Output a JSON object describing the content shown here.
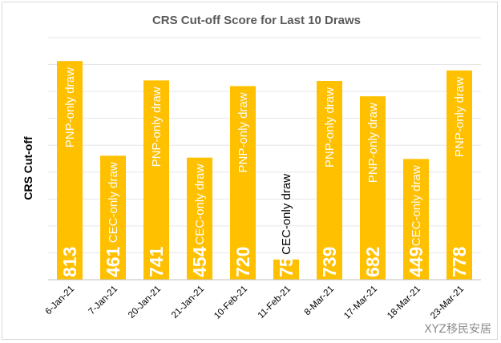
{
  "chart_data": {
    "type": "bar",
    "title": "CRS Cut-off Score for Last 10 Draws",
    "ylabel": "CRS Cut-off",
    "xlabel": "",
    "ylim": [
      0,
      900
    ],
    "grid": true,
    "legend": "none",
    "bar_color": "#FFC000",
    "categories": [
      "6-Jan-21",
      "7-Jan-21",
      "20-Jan-21",
      "21-Jan-21",
      "10-Feb-21",
      "11-Feb-21",
      "8-Mar-21",
      "17-Mar-21",
      "18-Mar-21",
      "23-Mar-21"
    ],
    "values": [
      813,
      461,
      741,
      454,
      720,
      75,
      739,
      682,
      449,
      778
    ],
    "annotations": [
      "PNP-only draw",
      "CEC-only draw",
      "PNP-only draw",
      "CEC-only draw",
      "PNP-only draw",
      "CEC-only draw",
      "PNP-only draw",
      "PNP-only draw",
      "CEC-only draw",
      "PNP-only draw"
    ]
  },
  "watermark": "XYZ移民安居"
}
